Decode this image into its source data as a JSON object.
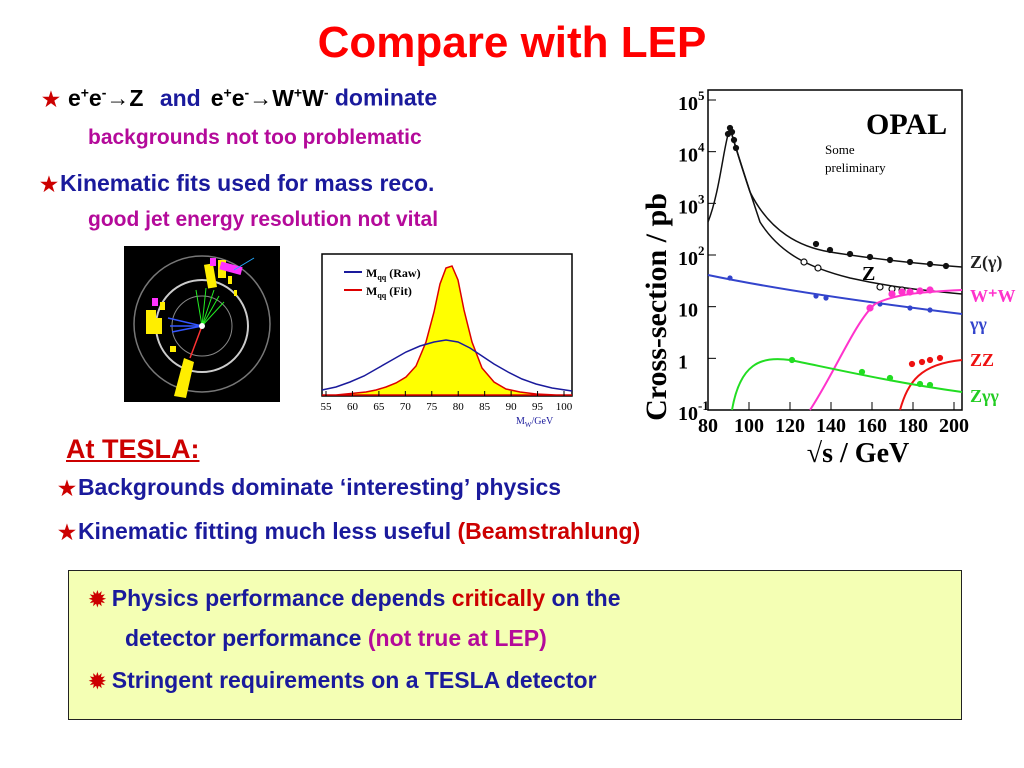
{
  "title": "Compare with LEP",
  "bullet1": {
    "p1": "e",
    "s1": "+",
    "p2": "e",
    "s2": "-",
    "p3": "→Z",
    "and": "and",
    "p4": "e",
    "s4": "+",
    "p5": "e",
    "s5": "-",
    "p6": "→W",
    "s6": "+",
    "p7": "W",
    "s7": "-",
    "dominate": "dominate",
    "sub": "backgrounds not too problematic"
  },
  "bullet2": {
    "text": "Kinematic fits used for mass reco.",
    "sub": "good jet energy resolution not vital"
  },
  "tesla": {
    "heading": "At TESLA:",
    "b1": "Backgrounds dominate ‘interesting’ physics",
    "b2": "Kinematic fitting much less useful",
    "b2_red": "(Beamstrahlung)"
  },
  "box": {
    "l1a": "Physics performance depends",
    "l1b": "critically",
    "l1c": "on the",
    "l2a": "detector performance",
    "l2b": "(not true at LEP)",
    "l3": "Stringent requirements on a TESLA detector"
  },
  "mass_plot": {
    "legend": [
      {
        "label_main": "M",
        "label_sub": "qq",
        "label_rest": " (Raw)",
        "color": "#1a1a9c"
      },
      {
        "label_main": "M",
        "label_sub": "qq",
        "label_rest": " (Fit)",
        "color": "#dd0000"
      }
    ],
    "xticks": [
      "55",
      "60",
      "65",
      "70",
      "75",
      "80",
      "85",
      "90",
      "95",
      "100"
    ],
    "xlabel_main": "M",
    "xlabel_sub": "W",
    "xlabel_rest": "/GeV",
    "fill_color": "#ffff00"
  },
  "xsec_plot": {
    "ylabel": "Cross-section / pb",
    "xlabel": "√s / GeV",
    "xticks": [
      "80",
      "100",
      "120",
      "140",
      "160",
      "180",
      "200"
    ],
    "yticks": [
      {
        "base": "10",
        "exp": "5"
      },
      {
        "base": "10",
        "exp": "4"
      },
      {
        "base": "10",
        "exp": "3"
      },
      {
        "base": "10",
        "exp": "2"
      },
      {
        "base": "10",
        "exp": ""
      },
      {
        "base": "1",
        "exp": ""
      },
      {
        "base": "10",
        "exp": "-1"
      }
    ],
    "logo": "OPAL",
    "note": [
      "Some",
      "preliminary"
    ],
    "z_label": "Z",
    "legend": [
      {
        "text": "Z(γ)",
        "color": "#222222"
      },
      {
        "text": "W⁺W",
        "color": "#ff33cc"
      },
      {
        "text": "γγ",
        "color": "#3344cc"
      },
      {
        "text": "ZZ",
        "color": "#ee1111"
      },
      {
        "text": "Zγγ",
        "color": "#22cc22"
      }
    ]
  }
}
